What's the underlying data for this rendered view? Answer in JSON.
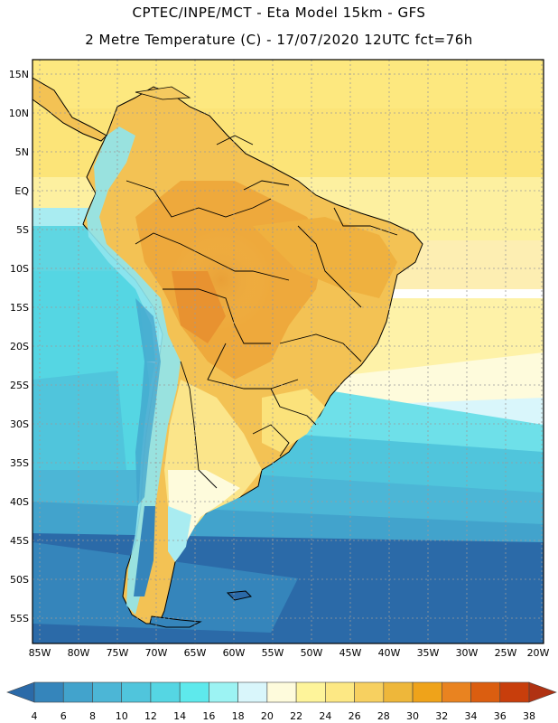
{
  "titles": {
    "line1": "CPTEC/INPE/MCT -  Eta Model 15km - GFS",
    "line2": "2 Metre Temperature (C) - 17/07/2020 12UTC fct=76h"
  },
  "map": {
    "lat_labels": [
      "15N",
      "10N",
      "5N",
      "EQ",
      "5S",
      "10S",
      "15S",
      "20S",
      "25S",
      "30S",
      "35S",
      "40S",
      "45S",
      "50S",
      "55S"
    ],
    "lon_labels": [
      "85W",
      "80W",
      "75W",
      "70W",
      "65W",
      "60W",
      "55W",
      "50W",
      "45W",
      "40W",
      "35W",
      "30W",
      "25W",
      "20W"
    ],
    "lat_range": [
      -58,
      17
    ],
    "lon_range": [
      -86,
      -20
    ]
  },
  "colorbar": {
    "labels": [
      "4",
      "6",
      "8",
      "10",
      "12",
      "14",
      "16",
      "18",
      "20",
      "22",
      "24",
      "26",
      "28",
      "30",
      "32",
      "34",
      "36",
      "38"
    ],
    "colors": [
      "#2b6aa8",
      "#3585bb",
      "#42a3cc",
      "#4cb6d6",
      "#50c5dc",
      "#55d6e3",
      "#5ee9ec",
      "#9cf3f3",
      "#d9f6fb",
      "#fefbdc",
      "#fef49a",
      "#fde884",
      "#f7d060",
      "#eeb73a",
      "#efa31a",
      "#e98320",
      "#db5e10",
      "#c83e0c",
      "#b03212"
    ]
  }
}
